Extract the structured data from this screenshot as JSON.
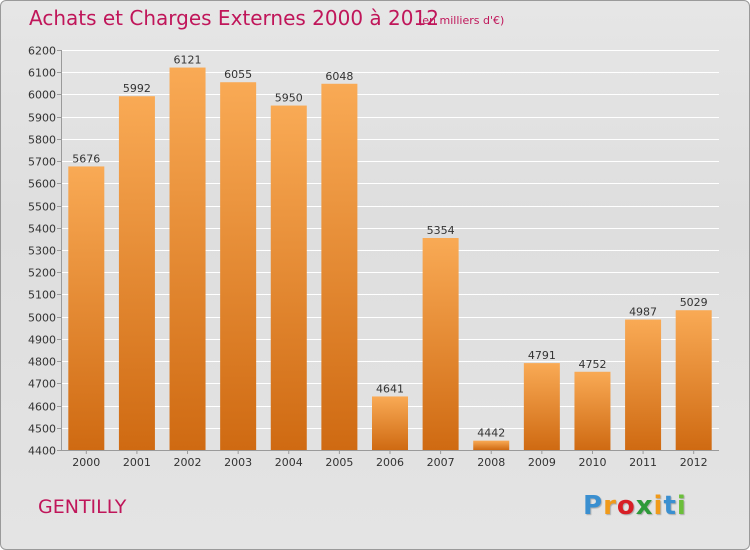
{
  "header": {
    "title": "Achats et Charges Externes 2000 à 2012",
    "unit": "(en milliers d'€)"
  },
  "footer": {
    "commune": "GENTILLY",
    "logo": "Proxiti",
    "logo_colors": [
      "#3a8fd0",
      "#f09a1a",
      "#d81f26",
      "#2e9a3a",
      "#f09a1a",
      "#3a8fd0",
      "#6bbf3a"
    ]
  },
  "colors": {
    "title": "#c0165a",
    "bar_light": "#f9aa55",
    "bar_dark": "#cf6a12",
    "grid": "#ffffff",
    "axis": "#9a9a9a"
  },
  "chart_data": {
    "type": "bar",
    "categories": [
      "2000",
      "2001",
      "2002",
      "2003",
      "2004",
      "2005",
      "2006",
      "2007",
      "2008",
      "2009",
      "2010",
      "2011",
      "2012"
    ],
    "values": [
      5676,
      5992,
      6121,
      6055,
      5950,
      6048,
      4641,
      5354,
      4442,
      4791,
      4752,
      4987,
      5029
    ],
    "title": "Achats et Charges Externes 2000 à 2012",
    "subtitle": "(en milliers d'€)",
    "xlabel": "",
    "ylabel": "",
    "ylim": [
      4400,
      6200
    ],
    "yticks": [
      4400,
      4500,
      4600,
      4700,
      4800,
      4900,
      5000,
      5100,
      5200,
      5300,
      5400,
      5500,
      5600,
      5700,
      5800,
      5900,
      6000,
      6100,
      6200
    ],
    "grid": true,
    "data_labels": true
  }
}
